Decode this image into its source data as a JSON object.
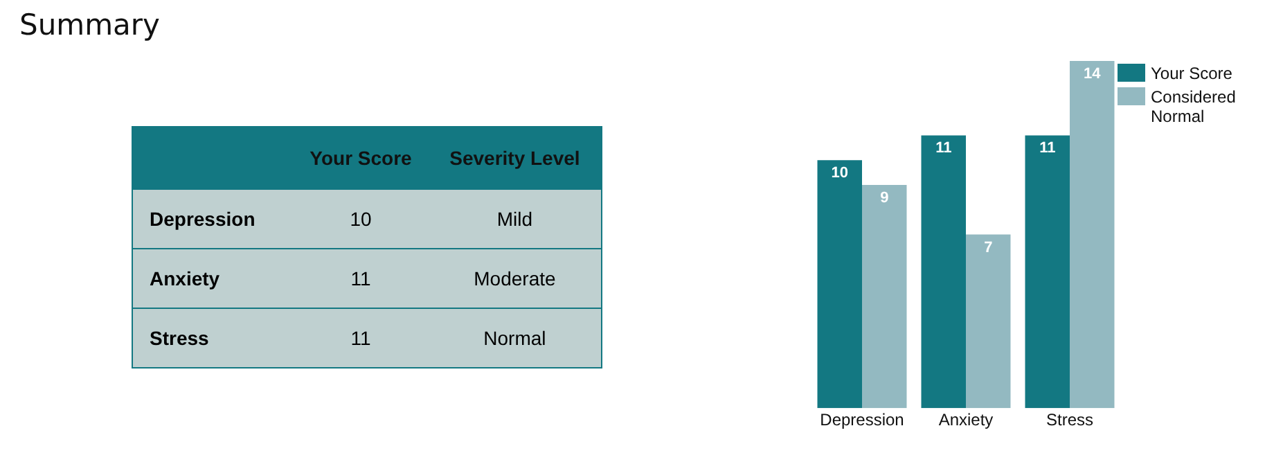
{
  "chart_data": [
    {
      "type": "other",
      "title": "Summary",
      "data_labels": true,
      "categories": [
        "Depression",
        "Anxiety",
        "Stress"
      ],
      "series": [
        {
          "name": "Your Score",
          "values": [
            10,
            11,
            11
          ]
        },
        {
          "name": "Severity Level",
          "values": [
            null,
            null,
            null
          ],
          "value_labels": [
            "Mild",
            "Moderate",
            "Normal"
          ]
        }
      ]
    },
    {
      "type": "bar",
      "categories": [
        "Depression",
        "Anxiety",
        "Stress"
      ],
      "ylim": [
        0,
        14
      ],
      "data_labels": true,
      "legend": "top right",
      "grid": false,
      "series": [
        {
          "name": "Your Score",
          "color": "#137882",
          "values": [
            10,
            11,
            11
          ]
        },
        {
          "name": "Considered Normal",
          "color": "#93b9c1",
          "values": [
            9,
            7,
            14
          ]
        }
      ]
    }
  ]
}
